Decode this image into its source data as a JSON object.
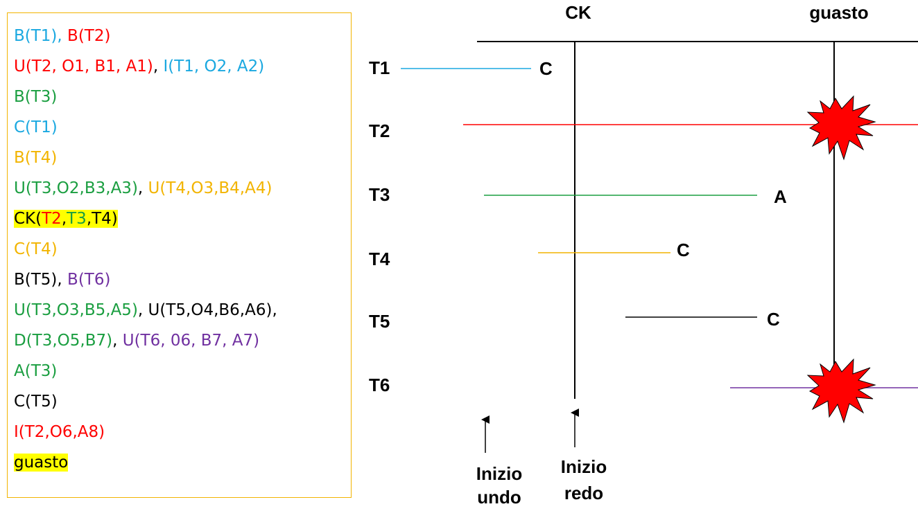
{
  "colors": {
    "T1": "#1aa8e0",
    "T2": "#ff0000",
    "T3": "#1a9e40",
    "T4": "#f2b400",
    "T5": "#000000",
    "T6": "#7030a0",
    "highlight": "#ffff00",
    "failure": "#ff0000"
  },
  "log": [
    [
      {
        "text": "B(T1)",
        "color": "T1"
      },
      {
        "text": ", ",
        "color": "T1"
      },
      {
        "text": "B(T2)",
        "color": "T2"
      }
    ],
    [
      {
        "text": "U(T2, O1, B1, A1)",
        "color": "T2"
      },
      {
        "text": ", ",
        "color": "T5"
      },
      {
        "text": "I(T1, O2, A2)",
        "color": "T1"
      }
    ],
    [
      {
        "text": "B(T3)",
        "color": "T3"
      }
    ],
    [
      {
        "text": "C(T1)",
        "color": "T1"
      }
    ],
    [
      {
        "text": "B(T4)",
        "color": "T4"
      }
    ],
    [
      {
        "text": "U(T3,O2,B3,A3)",
        "color": "T3"
      },
      {
        "text": ", ",
        "color": "T5"
      },
      {
        "text": "U(T4,O3,B4,A4)",
        "color": "T4"
      }
    ],
    [
      {
        "text": "CK(",
        "color": "T5",
        "hl": true
      },
      {
        "text": "T2",
        "color": "T2",
        "hl": true
      },
      {
        "text": ",",
        "color": "T5",
        "hl": true
      },
      {
        "text": "T3",
        "color": "T3",
        "hl": true
      },
      {
        "text": ",T4)",
        "color": "T5",
        "hl": true
      }
    ],
    [
      {
        "text": "C(T4)",
        "color": "T4"
      }
    ],
    [
      {
        "text": "B(T5)",
        "color": "T5"
      },
      {
        "text": ", ",
        "color": "T5"
      },
      {
        "text": "B(T6)",
        "color": "T6"
      }
    ],
    [
      {
        "text": "U(T3,O3,B5,A5)",
        "color": "T3"
      },
      {
        "text": ", ",
        "color": "T5"
      },
      {
        "text": "U(T5,O4,B6,A6),",
        "color": "T5"
      }
    ],
    [
      {
        "text": "D(T3,O5,B7)",
        "color": "T3"
      },
      {
        "text": ", ",
        "color": "T5"
      },
      {
        "text": "U(T6, 06, B7, A7)",
        "color": "T6"
      }
    ],
    [
      {
        "text": "A(T3)",
        "color": "T3"
      }
    ],
    [
      {
        "text": "C(T5)",
        "color": "T5"
      }
    ],
    [
      {
        "text": "I(T2,O6,A8)",
        "color": "T2"
      }
    ],
    [
      {
        "text": "guasto",
        "color": "T5",
        "hl": true
      }
    ]
  ],
  "diagram": {
    "ck_label": "CK",
    "failure_label": "guasto",
    "transactions": [
      {
        "name": "T1",
        "color": "T1",
        "end_label": "C"
      },
      {
        "name": "T2",
        "color": "T2",
        "end_label": ""
      },
      {
        "name": "T3",
        "color": "T3",
        "end_label": "A"
      },
      {
        "name": "T4",
        "color": "T4",
        "end_label": "C"
      },
      {
        "name": "T5",
        "color": "T5",
        "end_label": "C"
      },
      {
        "name": "T6",
        "color": "T6",
        "end_label": ""
      }
    ],
    "undo_label": [
      "Inizio",
      "undo"
    ],
    "redo_label": [
      "Inizio",
      "redo"
    ]
  }
}
